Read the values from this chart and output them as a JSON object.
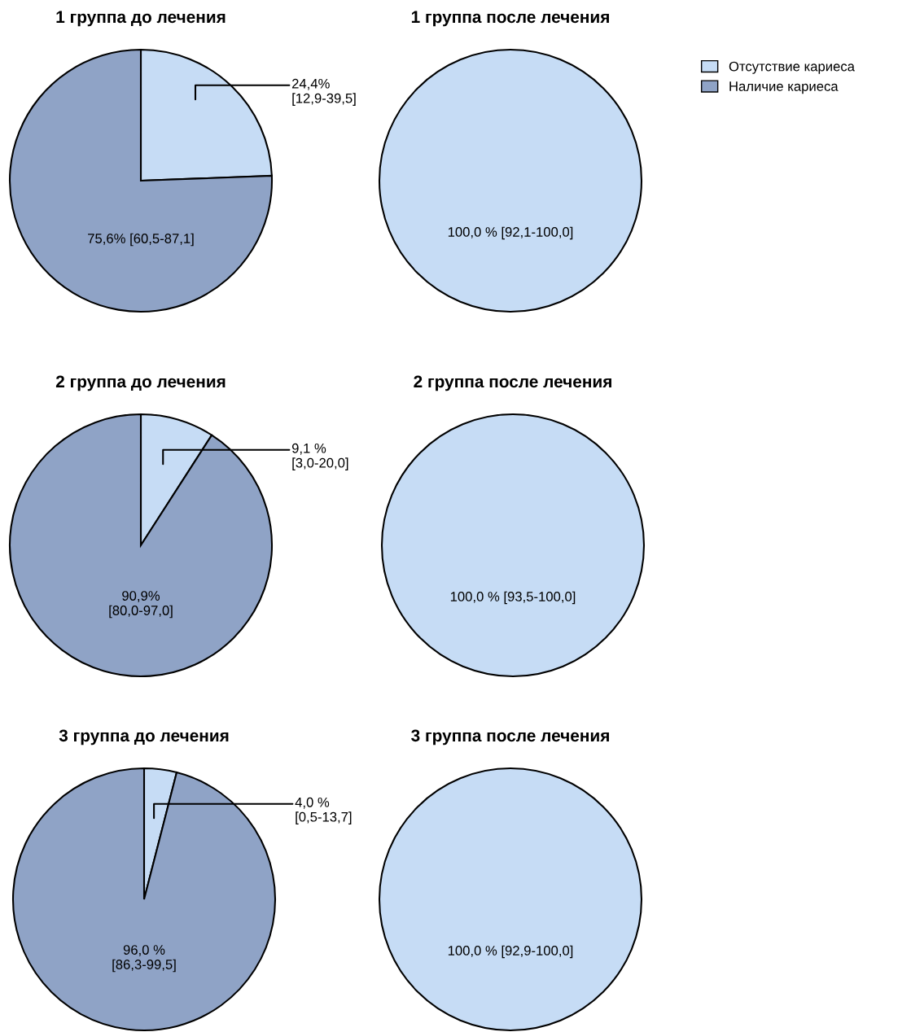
{
  "chart_data": [
    {
      "type": "pie",
      "title": "1 группа до лечения",
      "categories": [
        "Отсутствие кариеса",
        "Наличие кариеса"
      ],
      "values": [
        24.4,
        75.6
      ],
      "colors": [
        "#c6dcf5",
        "#8fa3c6"
      ],
      "value_labels": [
        "24,4%\n[12,9-39,5]",
        "75,6% [60,5-87,1]"
      ],
      "legend": "top right"
    },
    {
      "type": "pie",
      "title": "1 группа после лечения",
      "categories": [
        null,
        null
      ],
      "values": [
        100.0,
        0
      ],
      "colors": [
        "#c6dcf5",
        "#8fa3c6"
      ],
      "value_labels": [
        "100,0 % [92,1-100,0]",
        null
      ]
    },
    {
      "type": "pie",
      "title": "2 группа до лечения",
      "categories": [
        null,
        null
      ],
      "values": [
        9.1,
        90.9
      ],
      "colors": [
        "#c6dcf5",
        "#8fa3c6"
      ],
      "value_labels": [
        "9,1 %\n[3,0-20,0]",
        "90,9%\n[80,0-97,0]"
      ]
    },
    {
      "type": "pie",
      "title": "2 группа после лечения",
      "categories": [
        null,
        null
      ],
      "values": [
        100.0,
        0
      ],
      "colors": [
        "#c6dcf5",
        "#8fa3c6"
      ],
      "value_labels": [
        "100,0 % [93,5-100,0]",
        null
      ]
    },
    {
      "type": "pie",
      "title": "3 группа до лечения",
      "categories": [
        null,
        null
      ],
      "values": [
        4.0,
        96.0
      ],
      "colors": [
        "#c6dcf5",
        "#8fa3c6"
      ],
      "value_labels": [
        "4,0 %\n[0,5-13,7]",
        "96,0 %\n[86,3-99,5]"
      ]
    },
    {
      "type": "pie",
      "title": "3 группа после лечения",
      "categories": [
        null,
        null
      ],
      "values": [
        100.0,
        0
      ],
      "colors": [
        "#c6dcf5",
        "#8fa3c6"
      ],
      "value_labels": [
        "100,0 % [92,9-100,0]",
        null
      ]
    }
  ]
}
